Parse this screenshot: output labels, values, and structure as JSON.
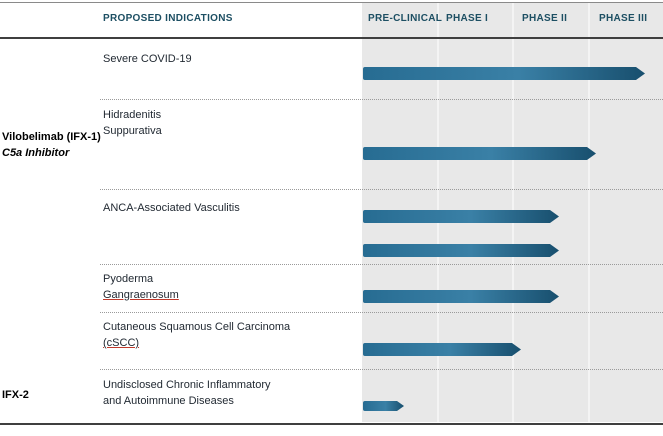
{
  "header": {
    "indications": "PROPOSED INDICATIONS",
    "phases": [
      {
        "label": "PRE-CLINICAL"
      },
      {
        "label": "PHASE I"
      },
      {
        "label": "PHASE II"
      },
      {
        "label": "PHASE III"
      }
    ]
  },
  "programs": [
    {
      "name": "Vilobelimab (IFX-1)",
      "mechanism": "C5a Inhibitor"
    },
    {
      "name": "IFX-2",
      "mechanism": ""
    }
  ],
  "rows": [
    {
      "line1": "Severe COVID-19",
      "line2": "",
      "phase_end": 3.75
    },
    {
      "line1": "Hidradenitis",
      "line2": "Suppurativa",
      "phase_end": 3.1
    },
    {
      "line1": "ANCA-Associated Vasculitis",
      "line2": "",
      "phase_end": 2.6,
      "phase_end_2": 2.6
    },
    {
      "line1": "Pyoderma",
      "line2": "Gangraenosum",
      "phase_end": 2.6
    },
    {
      "line1": "Cutaneous Squamous Cell Carcinoma",
      "line2": "(cSCC)",
      "phase_end": 2.1
    },
    {
      "line1": "Undisclosed Chronic Inflammatory",
      "line2": "and Autoimmune Diseases",
      "phase_end": 0.55
    }
  ],
  "colors": {
    "header_text": "#1d4f63",
    "panel_bg": "#e8e8e8",
    "bar_gradient_left": "#276c92",
    "bar_gradient_mid": "#3a80a6",
    "bar_gradient_tip": "#184f6e",
    "misspell_underline": "#c0392b",
    "rule_dark": "#3f3f3f"
  },
  "chart_data": {
    "type": "bar",
    "orientation": "horizontal",
    "phase_axis": [
      "Pre-Clinical",
      "Phase I",
      "Phase II",
      "Phase III"
    ],
    "progress_units_note": "progress in phase units: 1 = end of Pre-Clinical, 2 = end of Phase I, 3 = end of Phase II, 4 = end of Phase III",
    "bars": [
      {
        "program": "Vilobelimab (IFX-1), C5a Inhibitor",
        "indication": "Severe COVID-19",
        "progress": 3.75
      },
      {
        "program": "Vilobelimab (IFX-1), C5a Inhibitor",
        "indication": "Hidradenitis Suppurativa",
        "progress": 3.1
      },
      {
        "program": "Vilobelimab (IFX-1), C5a Inhibitor",
        "indication": "ANCA-Associated Vasculitis",
        "progress": 2.6
      },
      {
        "program": "Vilobelimab (IFX-1), C5a Inhibitor",
        "indication": "ANCA-Associated Vasculitis",
        "progress": 2.6
      },
      {
        "program": "Vilobelimab (IFX-1), C5a Inhibitor",
        "indication": "Pyoderma Gangraenosum",
        "progress": 2.6
      },
      {
        "program": "Vilobelimab (IFX-1), C5a Inhibitor",
        "indication": "Cutaneous Squamous Cell Carcinoma (cSCC)",
        "progress": 2.1
      },
      {
        "program": "IFX-2",
        "indication": "Undisclosed Chronic Inflammatory and Autoimmune Diseases",
        "progress": 0.55
      }
    ]
  }
}
